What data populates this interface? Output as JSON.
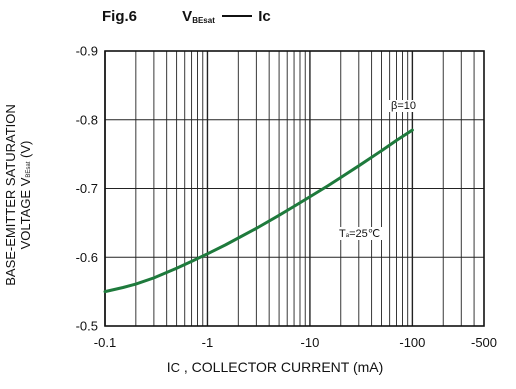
{
  "figure": {
    "fig_label": "Fig.6",
    "title_main": "V",
    "title_sub": "BEsat",
    "title_end": "Ic"
  },
  "chart_data": {
    "type": "line",
    "xscale": "log",
    "x_ticks": [
      -0.1,
      -1,
      -10,
      -100,
      -500
    ],
    "x_tick_labels": [
      "-0.1",
      "-1",
      "-10",
      "-100",
      "-500"
    ],
    "xlim": [
      -0.1,
      -500
    ],
    "y_ticks": [
      -0.9,
      -0.8,
      -0.7,
      -0.6,
      -0.5
    ],
    "y_tick_labels": [
      "-0.9",
      "-0.8",
      "-0.7",
      "-0.6",
      "-0.5"
    ],
    "ylim": [
      -0.5,
      -0.9
    ],
    "grid": true,
    "xlabel_main": "I",
    "xlabel_sub": "C",
    "xlabel_rest": " , COLLECTOR CURRENT (mA)",
    "ylabel_line1": "BASE-EMITTER SATURATION",
    "ylabel_line2_main": "VOLTAGE V",
    "ylabel_line2_sub": "BEsat",
    "ylabel_line2_end": " (V)",
    "series": [
      {
        "x": [
          -0.1,
          -0.15,
          -0.2,
          -0.3,
          -0.5,
          -0.7,
          -1,
          -1.5,
          -2,
          -3,
          -5,
          -7,
          -10,
          -15,
          -20,
          -30,
          -50,
          -70,
          -100
        ],
        "y": [
          -0.55,
          -0.556,
          -0.561,
          -0.57,
          -0.584,
          -0.594,
          -0.605,
          -0.618,
          -0.628,
          -0.642,
          -0.661,
          -0.674,
          -0.688,
          -0.704,
          -0.716,
          -0.733,
          -0.755,
          -0.77,
          -0.785
        ],
        "color": "#1e7a3c"
      }
    ],
    "annotations": [
      {
        "text_main": "β=10",
        "text_sub": "",
        "text_end": ""
      },
      {
        "text_main": "T",
        "text_sub": "a",
        "text_end": "=25℃"
      }
    ]
  }
}
